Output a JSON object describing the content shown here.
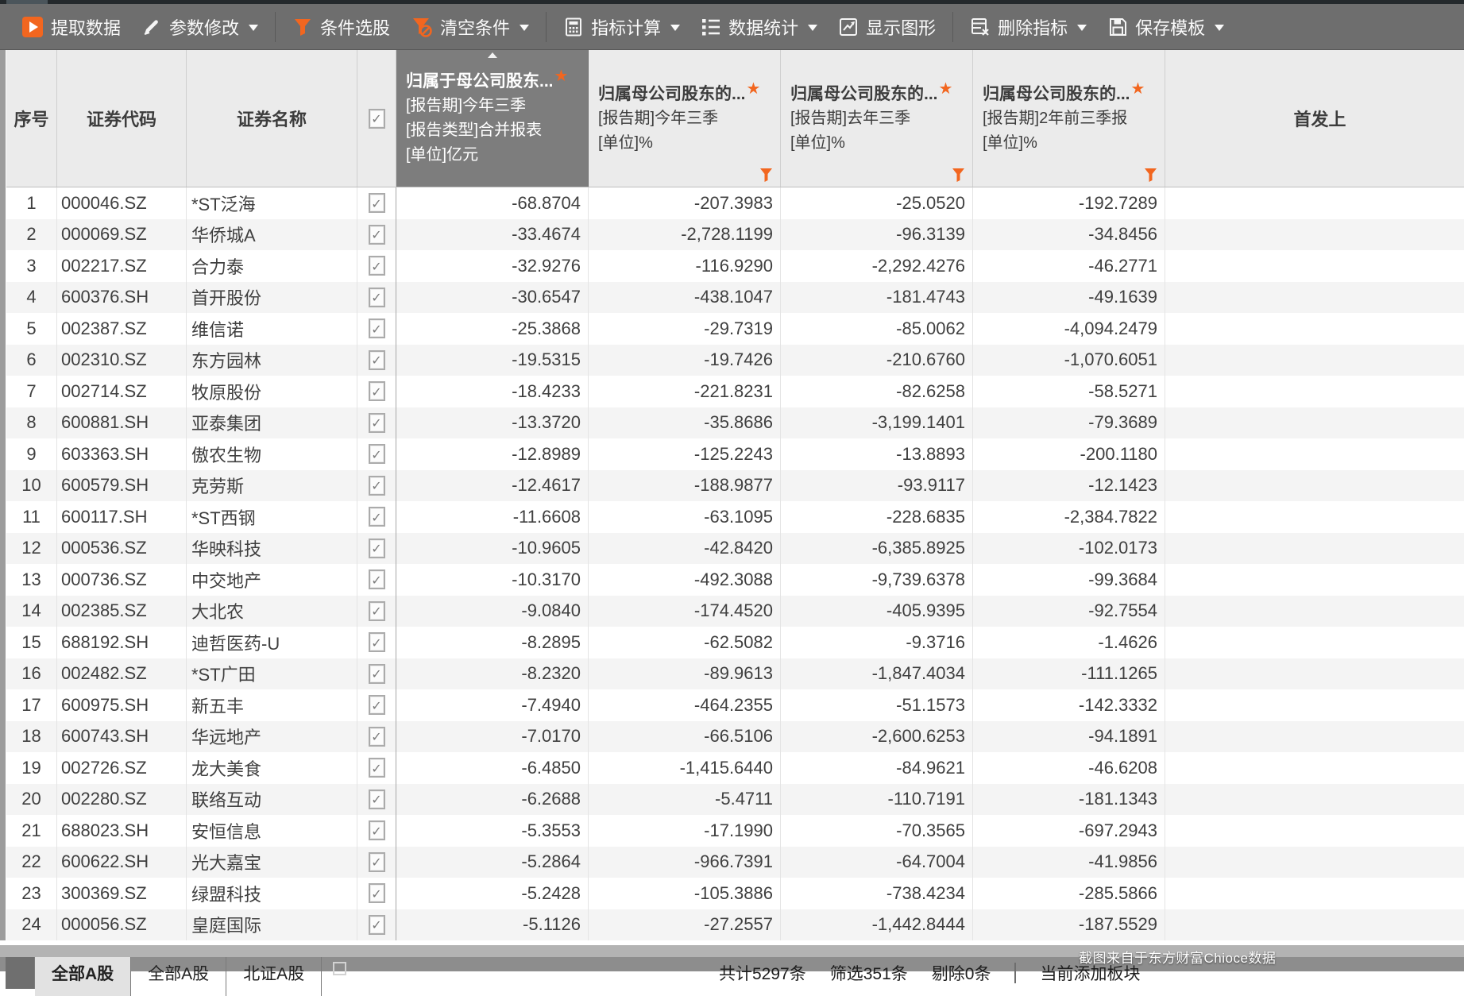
{
  "colors": {
    "accent_orange": "#F2661F",
    "toolbar_bg": "#6E6E6E",
    "selected_header_bg": "#7D7D7D",
    "header_bg": "#EBEBEB"
  },
  "toolbar": {
    "groups": [
      [
        {
          "label": "提取数据",
          "icon": "play",
          "dropdown": false
        },
        {
          "label": "参数修改",
          "icon": "pencil",
          "dropdown": true
        }
      ],
      [
        {
          "label": "条件选股",
          "icon": "funnel",
          "dropdown": false
        },
        {
          "label": "清空条件",
          "icon": "funnel-clear",
          "dropdown": true
        }
      ],
      [
        {
          "label": "指标计算",
          "icon": "calculator",
          "dropdown": true
        },
        {
          "label": "数据统计",
          "icon": "list",
          "dropdown": true
        },
        {
          "label": "显示图形",
          "icon": "chart",
          "dropdown": false
        }
      ],
      [
        {
          "label": "删除指标",
          "icon": "table-delete",
          "dropdown": true
        },
        {
          "label": "保存模板",
          "icon": "save",
          "dropdown": true
        }
      ]
    ]
  },
  "table": {
    "row_number_header": "序号",
    "code_header": "证券代码",
    "name_header": "证券名称",
    "select_all_checked": true,
    "indicator_columns": [
      {
        "title": "归属于母公司股东...",
        "starred": true,
        "selected": true,
        "sorted_asc": true,
        "filtered": false,
        "clipped": false,
        "lines": [
          "[报告期]今年三季",
          "[报告类型]合并报表",
          "[单位]亿元"
        ]
      },
      {
        "title": "归属母公司股东的...",
        "starred": true,
        "selected": false,
        "sorted_asc": false,
        "filtered": true,
        "clipped": false,
        "lines": [
          "[报告期]今年三季",
          "[单位]%"
        ]
      },
      {
        "title": "归属母公司股东的...",
        "starred": true,
        "selected": false,
        "sorted_asc": false,
        "filtered": true,
        "clipped": false,
        "lines": [
          "[报告期]去年三季",
          "[单位]%"
        ]
      },
      {
        "title": "归属母公司股东的...",
        "starred": true,
        "selected": false,
        "sorted_asc": false,
        "filtered": true,
        "clipped": false,
        "lines": [
          "[报告期]2年前三季报",
          "[单位]%"
        ]
      },
      {
        "title": "首发上",
        "starred": false,
        "selected": false,
        "sorted_asc": false,
        "filtered": false,
        "clipped": true,
        "lines": []
      }
    ],
    "rows": [
      {
        "no": "1",
        "code": "000046.SZ",
        "name": "*ST泛海",
        "checked": true,
        "values": [
          "-68.8704",
          "-207.3983",
          "-25.0520",
          "-192.7289"
        ]
      },
      {
        "no": "2",
        "code": "000069.SZ",
        "name": "华侨城A",
        "checked": true,
        "values": [
          "-33.4674",
          "-2,728.1199",
          "-96.3139",
          "-34.8456"
        ]
      },
      {
        "no": "3",
        "code": "002217.SZ",
        "name": "合力泰",
        "checked": true,
        "values": [
          "-32.9276",
          "-116.9290",
          "-2,292.4276",
          "-46.2771"
        ]
      },
      {
        "no": "4",
        "code": "600376.SH",
        "name": "首开股份",
        "checked": true,
        "values": [
          "-30.6547",
          "-438.1047",
          "-181.4743",
          "-49.1639"
        ]
      },
      {
        "no": "5",
        "code": "002387.SZ",
        "name": "维信诺",
        "checked": true,
        "values": [
          "-25.3868",
          "-29.7319",
          "-85.0062",
          "-4,094.2479"
        ]
      },
      {
        "no": "6",
        "code": "002310.SZ",
        "name": "东方园林",
        "checked": true,
        "values": [
          "-19.5315",
          "-19.7426",
          "-210.6760",
          "-1,070.6051"
        ]
      },
      {
        "no": "7",
        "code": "002714.SZ",
        "name": "牧原股份",
        "checked": true,
        "values": [
          "-18.4233",
          "-221.8231",
          "-82.6258",
          "-58.5271"
        ]
      },
      {
        "no": "8",
        "code": "600881.SH",
        "name": "亚泰集团",
        "checked": true,
        "values": [
          "-13.3720",
          "-35.8686",
          "-3,199.1401",
          "-79.3689"
        ]
      },
      {
        "no": "9",
        "code": "603363.SH",
        "name": "傲农生物",
        "checked": true,
        "values": [
          "-12.8989",
          "-125.2243",
          "-13.8893",
          "-200.1180"
        ]
      },
      {
        "no": "10",
        "code": "600579.SH",
        "name": "克劳斯",
        "checked": true,
        "values": [
          "-12.4617",
          "-188.9877",
          "-93.9117",
          "-12.1423"
        ]
      },
      {
        "no": "11",
        "code": "600117.SH",
        "name": "*ST西钢",
        "checked": true,
        "values": [
          "-11.6608",
          "-63.1095",
          "-228.6835",
          "-2,384.7822"
        ]
      },
      {
        "no": "12",
        "code": "000536.SZ",
        "name": "华映科技",
        "checked": true,
        "values": [
          "-10.9605",
          "-42.8420",
          "-6,385.8925",
          "-102.0173"
        ]
      },
      {
        "no": "13",
        "code": "000736.SZ",
        "name": "中交地产",
        "checked": true,
        "values": [
          "-10.3170",
          "-492.3088",
          "-9,739.6378",
          "-99.3684"
        ]
      },
      {
        "no": "14",
        "code": "002385.SZ",
        "name": "大北农",
        "checked": true,
        "values": [
          "-9.0840",
          "-174.4520",
          "-405.9395",
          "-92.7554"
        ]
      },
      {
        "no": "15",
        "code": "688192.SH",
        "name": "迪哲医药-U",
        "checked": true,
        "values": [
          "-8.2895",
          "-62.5082",
          "-9.3716",
          "-1.4626"
        ]
      },
      {
        "no": "16",
        "code": "002482.SZ",
        "name": "*ST广田",
        "checked": true,
        "values": [
          "-8.2320",
          "-89.9613",
          "-1,847.4034",
          "-111.1265"
        ]
      },
      {
        "no": "17",
        "code": "600975.SH",
        "name": "新五丰",
        "checked": true,
        "values": [
          "-7.4940",
          "-464.2355",
          "-51.1573",
          "-142.3332"
        ]
      },
      {
        "no": "18",
        "code": "600743.SH",
        "name": "华远地产",
        "checked": true,
        "values": [
          "-7.0170",
          "-66.5106",
          "-2,600.6253",
          "-94.1891"
        ]
      },
      {
        "no": "19",
        "code": "002726.SZ",
        "name": "龙大美食",
        "checked": true,
        "values": [
          "-6.4850",
          "-1,415.6440",
          "-84.9621",
          "-46.6208"
        ]
      },
      {
        "no": "20",
        "code": "002280.SZ",
        "name": "联络互动",
        "checked": true,
        "values": [
          "-6.2688",
          "-5.4711",
          "-110.7191",
          "-181.1343"
        ]
      },
      {
        "no": "21",
        "code": "688023.SH",
        "name": "安恒信息",
        "checked": true,
        "values": [
          "-5.3553",
          "-17.1990",
          "-70.3565",
          "-697.2943"
        ]
      },
      {
        "no": "22",
        "code": "600622.SH",
        "name": "光大嘉宝",
        "checked": true,
        "values": [
          "-5.2864",
          "-966.7391",
          "-64.7004",
          "-41.9856"
        ]
      },
      {
        "no": "23",
        "code": "300369.SZ",
        "name": "绿盟科技",
        "checked": true,
        "values": [
          "-5.2428",
          "-105.3886",
          "-738.4234",
          "-285.5866"
        ]
      },
      {
        "no": "24",
        "code": "000056.SZ",
        "name": "皇庭国际",
        "checked": true,
        "values": [
          "-5.1126",
          "-27.2557",
          "-1,442.8444",
          "-187.5529"
        ]
      }
    ]
  },
  "footer": {
    "sheet_tabs": [
      {
        "label": "全部A股",
        "active": true
      },
      {
        "label": "全部A股",
        "active": false
      },
      {
        "label": "北证A股",
        "active": false
      }
    ],
    "status": [
      "共计5297条",
      "筛选351条",
      "剔除0条"
    ],
    "status_extra": "当前添加板块"
  },
  "watermark": "截图来自于东方财富Chioce数据"
}
